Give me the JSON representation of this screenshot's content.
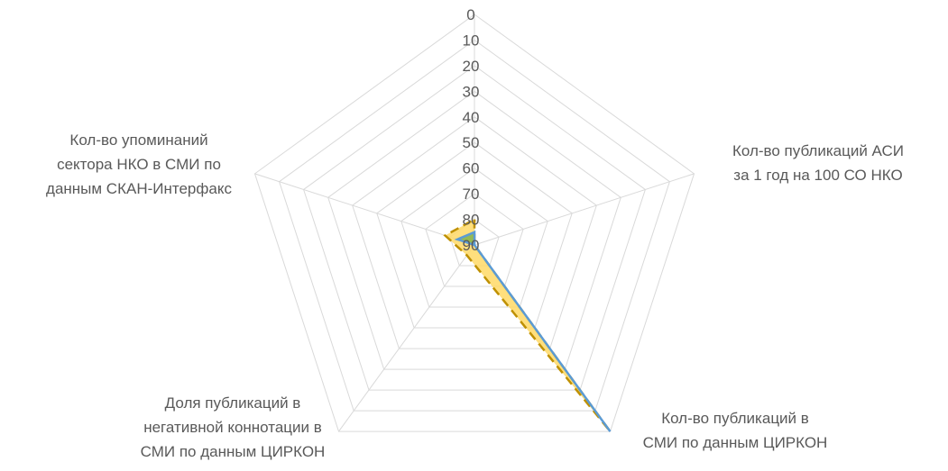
{
  "chart_data": {
    "type": "radar",
    "title": "",
    "axis_reversed": true,
    "r_range": [
      90,
      0
    ],
    "ticks": [
      "0",
      "10",
      "20",
      "30",
      "40",
      "50",
      "60",
      "70",
      "80",
      "90"
    ],
    "axes": [
      {
        "lines": [
          ""
        ]
      },
      {
        "lines": [
          "Кол-во публикаций АСИ",
          "за 1 год на 100 СО НКО"
        ]
      },
      {
        "lines": [
          "Кол-во публикаций в",
          "СМИ по данным ЦИРКОН"
        ]
      },
      {
        "lines": [
          "Доля публикаций в",
          "негативной коннотации в",
          "СМИ по данным ЦИРКОН"
        ]
      },
      {
        "lines": [
          "Кол-во упоминаний",
          "сектора НКО в СМИ по",
          "данным СКАН-Интерфакс"
        ]
      }
    ],
    "series": [
      {
        "values": [
          80,
          90,
          0,
          85,
          78
        ],
        "style": "filled-dashed",
        "fill": "#FFD966",
        "stroke": "#BF9000"
      },
      {
        "values": [
          85,
          90,
          0,
          90,
          83
        ],
        "style": "filled",
        "fill": "#70AD47",
        "stroke": "#5B9BD5"
      }
    ]
  }
}
